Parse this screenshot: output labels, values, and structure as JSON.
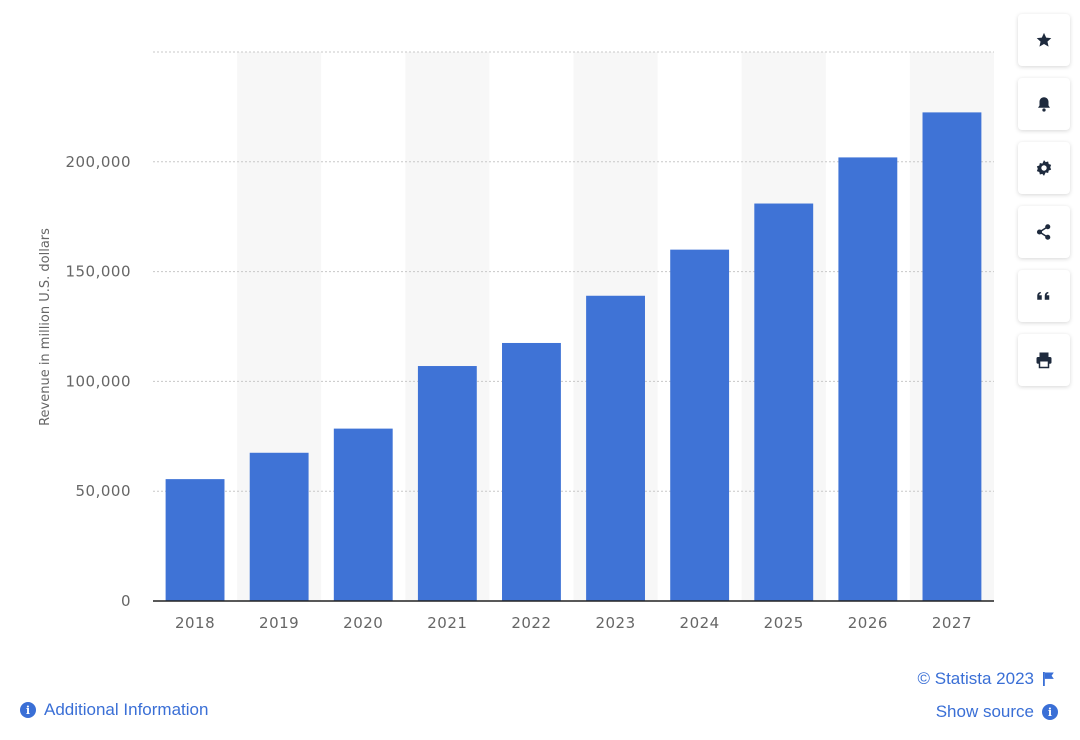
{
  "chart_data": {
    "type": "bar",
    "categories": [
      "2018",
      "2019",
      "2020",
      "2021",
      "2022",
      "2023",
      "2024",
      "2025",
      "2026",
      "2027"
    ],
    "values": [
      55500,
      67500,
      78500,
      107000,
      117500,
      139000,
      160000,
      181000,
      202000,
      222500
    ],
    "ylabel": "Revenue in million U.S. dollars",
    "xlabel": "",
    "ylim": [
      0,
      250000
    ],
    "yticks": [
      0,
      50000,
      100000,
      150000,
      200000
    ],
    "ytick_labels": [
      "0",
      "50,000",
      "100,000",
      "150,000",
      "200,000"
    ],
    "grid": true,
    "bar_color": "#3f73d6"
  },
  "colors": {
    "bar": "#3f73d6",
    "link": "#3a6fd6",
    "grid": "#c8c8c8",
    "band": "#f7f7f7"
  },
  "toolbar": {
    "items": [
      {
        "name": "favorite",
        "icon": "star-icon"
      },
      {
        "name": "notify",
        "icon": "bell-icon"
      },
      {
        "name": "settings",
        "icon": "gear-icon"
      },
      {
        "name": "share",
        "icon": "share-icon"
      },
      {
        "name": "cite",
        "icon": "quote-icon"
      },
      {
        "name": "print",
        "icon": "print-icon"
      }
    ]
  },
  "footer": {
    "copyright": "© Statista 2023",
    "show_source": "Show source",
    "additional_info": "Additional Information"
  }
}
